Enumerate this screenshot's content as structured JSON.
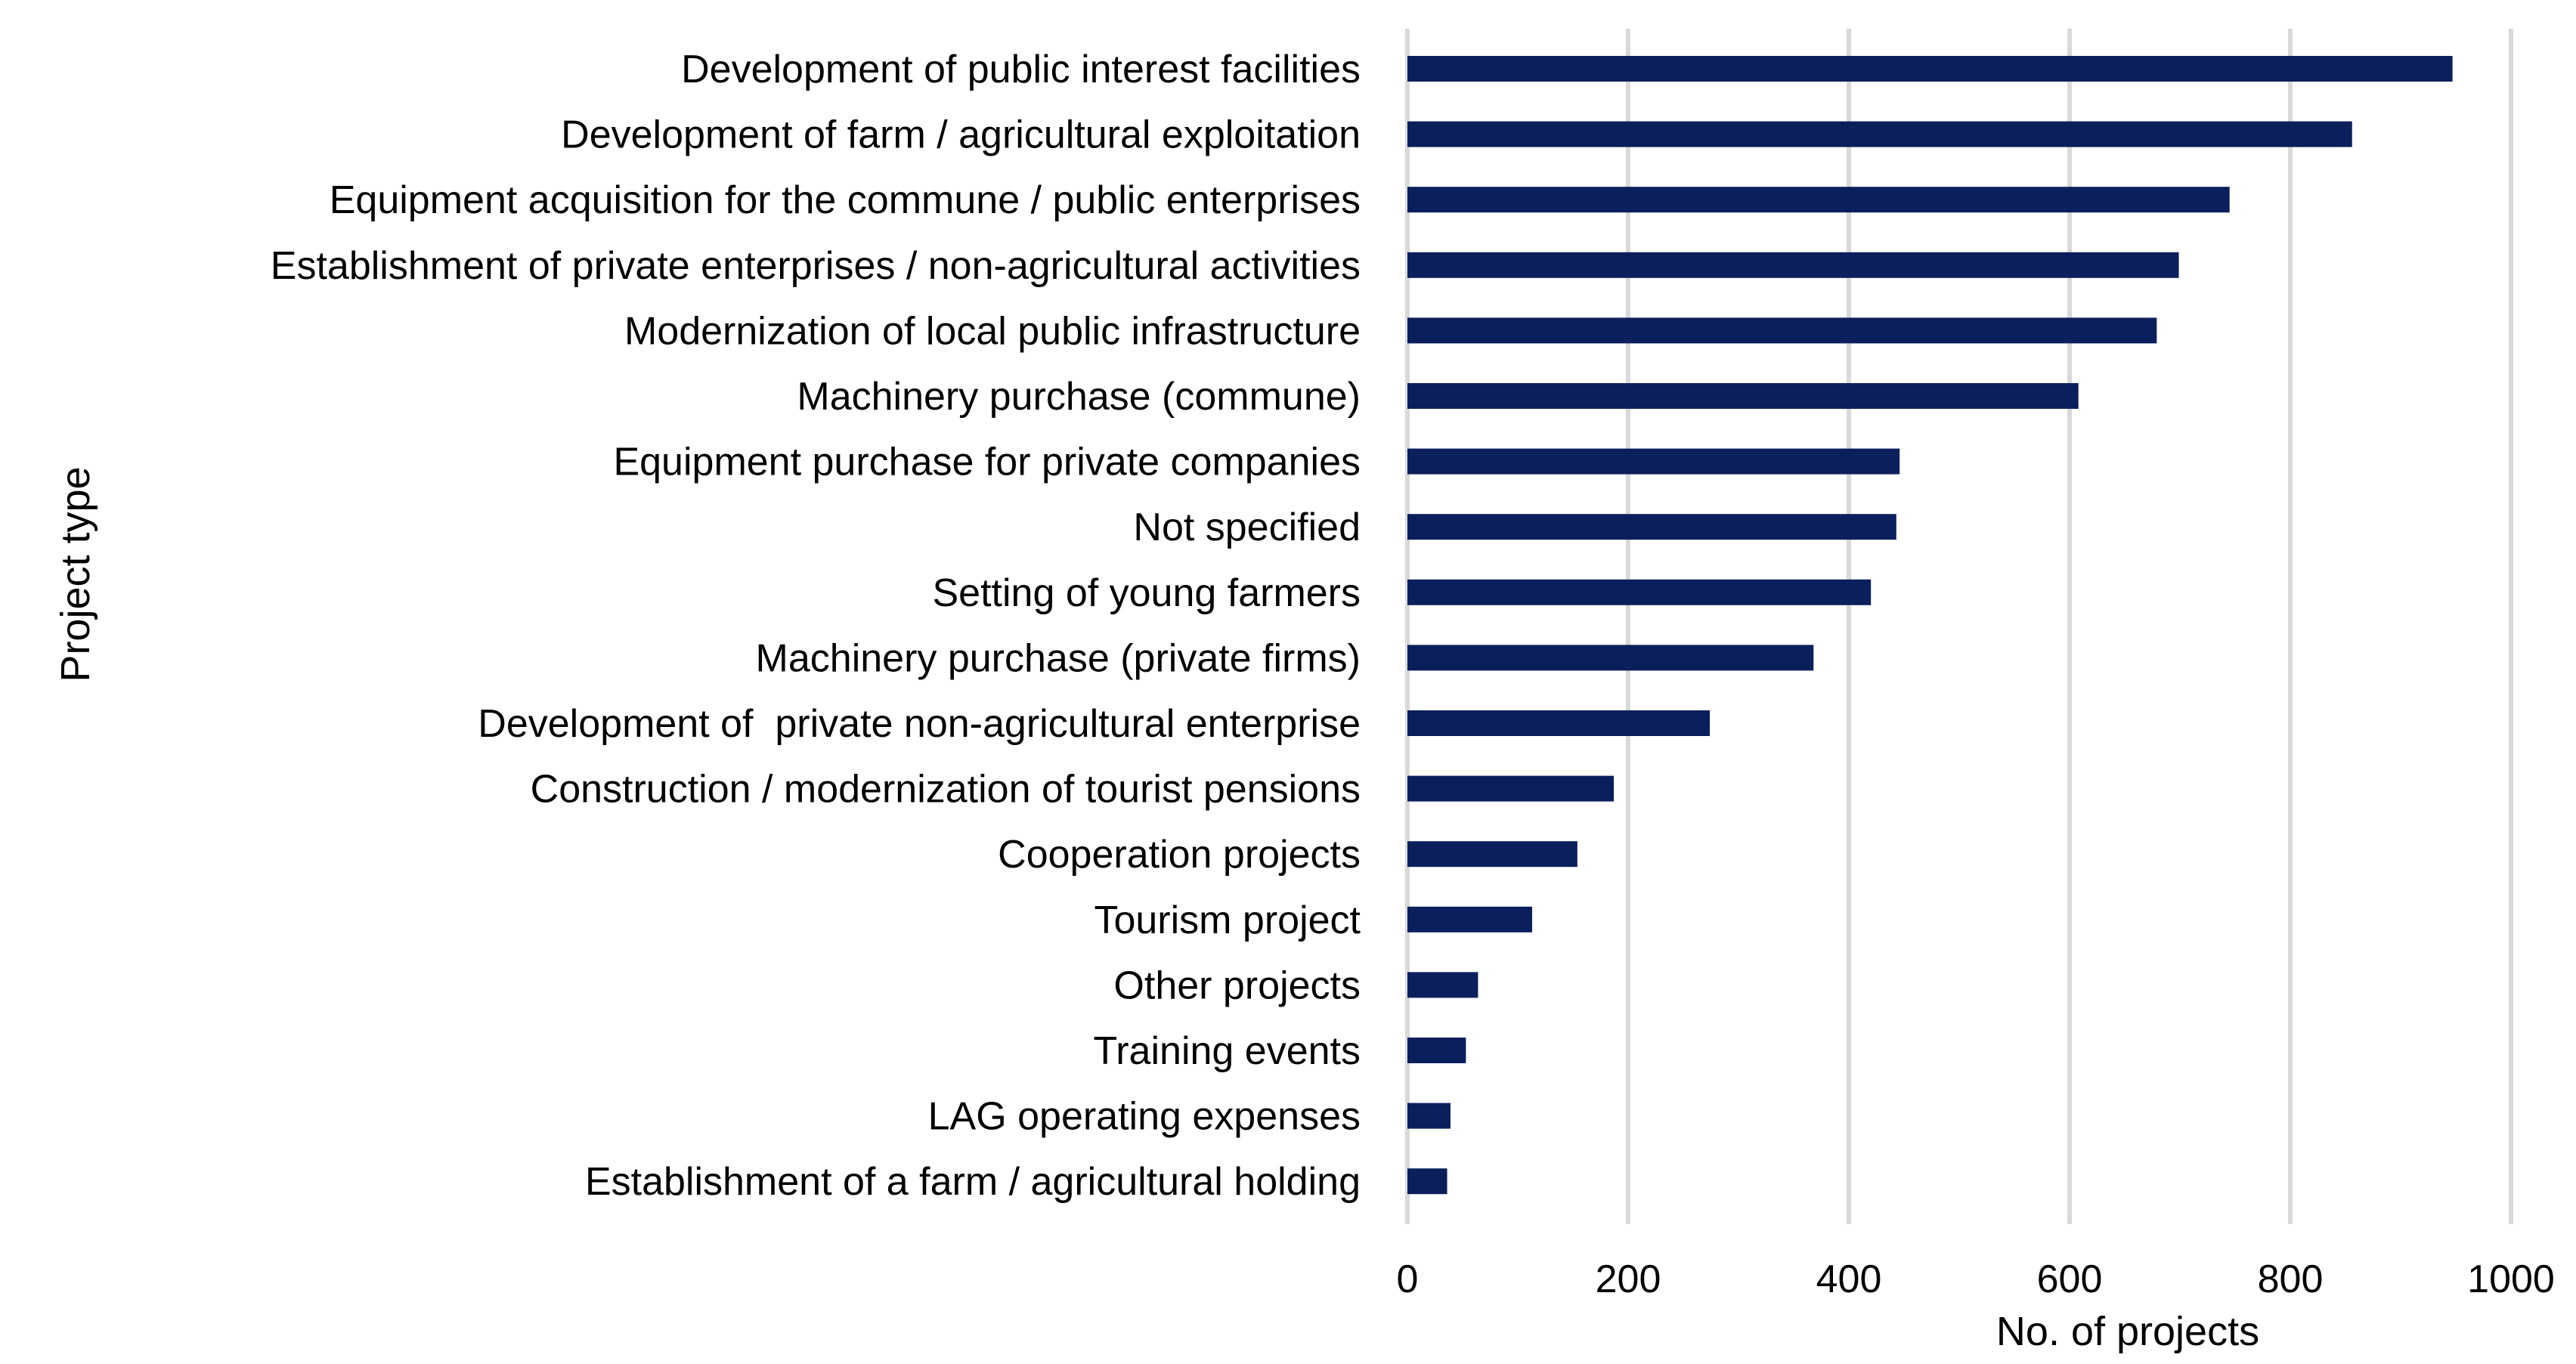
{
  "chart_data": {
    "type": "bar",
    "orientation": "horizontal",
    "categories": [
      "Development of public interest facilities",
      "Development of farm / agricultural exploitation",
      "Equipment acquisition for the commune / public enterprises",
      "Establishment of private enterprises / non-agricultural activities",
      "Modernization of local public infrastructure",
      "Machinery purchase (commune)",
      "Equipment purchase for private companies",
      "Not specified",
      "Setting of young farmers",
      "Machinery purchase (private firms)",
      "Development of  private non-agricultural enterprise",
      "Construction / modernization of tourist pensions",
      "Cooperation projects",
      "Tourism project",
      "Other projects",
      "Training events",
      "LAG operating expenses",
      "Establishment of a farm / agricultural holding"
    ],
    "values": [
      947,
      856,
      745,
      699,
      679,
      608,
      446,
      443,
      420,
      368,
      274,
      187,
      154,
      113,
      64,
      53,
      39,
      36
    ],
    "xlabel": "No. of projects",
    "ylabel": "Project type",
    "xlim": [
      0,
      1000
    ],
    "xticks": [
      0,
      200,
      400,
      600,
      800,
      1000
    ],
    "xtick_labels": [
      "0",
      "200",
      "400",
      "600",
      "800",
      "1000"
    ],
    "grid": "vertical",
    "legend": "none",
    "bar_color": "#0b1f5c",
    "grid_color": "#d9d9d9"
  }
}
